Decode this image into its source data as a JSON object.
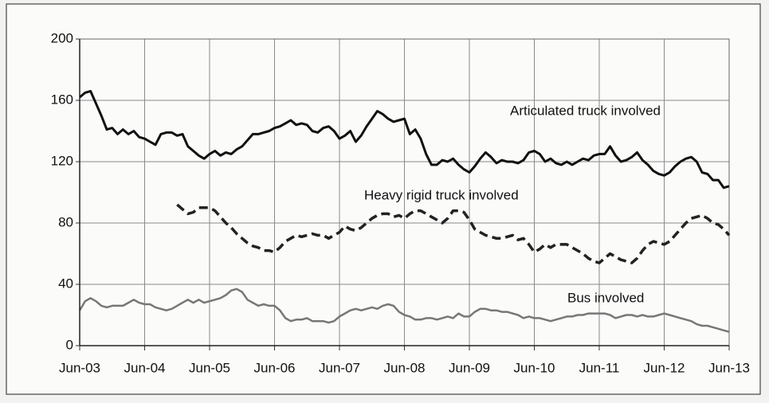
{
  "chart_data": {
    "type": "line",
    "categories": [
      "Jun-03",
      null,
      null,
      null,
      null,
      null,
      null,
      null,
      null,
      null,
      null,
      null,
      "Jun-04",
      null,
      null,
      null,
      null,
      null,
      null,
      null,
      null,
      null,
      null,
      null,
      "Jun-05",
      null,
      null,
      null,
      null,
      null,
      null,
      null,
      null,
      null,
      null,
      null,
      "Jun-06",
      null,
      null,
      null,
      null,
      null,
      null,
      null,
      null,
      null,
      null,
      null,
      "Jun-07",
      null,
      null,
      null,
      null,
      null,
      null,
      null,
      null,
      null,
      null,
      null,
      "Jun-08",
      null,
      null,
      null,
      null,
      null,
      null,
      null,
      null,
      null,
      null,
      null,
      "Jun-09",
      null,
      null,
      null,
      null,
      null,
      null,
      null,
      null,
      null,
      null,
      null,
      "Jun-10",
      null,
      null,
      null,
      null,
      null,
      null,
      null,
      null,
      null,
      null,
      null,
      "Jun-11",
      null,
      null,
      null,
      null,
      null,
      null,
      null,
      null,
      null,
      null,
      null,
      "Jun-12",
      null,
      null,
      null,
      null,
      null,
      null,
      null,
      null,
      null,
      null,
      null,
      "Jun-13"
    ],
    "series": [
      {
        "name": "Articulated truck involved",
        "color": "#111111",
        "dashed": false,
        "values": [
          162,
          165,
          166,
          158,
          150,
          141,
          142,
          138,
          141,
          138,
          140,
          136,
          135,
          133,
          131,
          138,
          139,
          139,
          137,
          138,
          130,
          127,
          124,
          122,
          125,
          127,
          124,
          126,
          125,
          128,
          130,
          134,
          138,
          138,
          139,
          140,
          142,
          143,
          145,
          147,
          144,
          145,
          144,
          140,
          139,
          142,
          143,
          140,
          135,
          137,
          140,
          133,
          137,
          143,
          148,
          153,
          151,
          148,
          146,
          147,
          148,
          138,
          141,
          135,
          125,
          118,
          118,
          121,
          120,
          122,
          118,
          115,
          113,
          117,
          122,
          126,
          123,
          119,
          121,
          120,
          120,
          119,
          121,
          126,
          127,
          125,
          120,
          122,
          119,
          118,
          120,
          118,
          120,
          122,
          121,
          124,
          125,
          125,
          130,
          124,
          120,
          121,
          123,
          126,
          121,
          118,
          114,
          112,
          111,
          113,
          117,
          120,
          122,
          123,
          120,
          113,
          112,
          108,
          108,
          103,
          104
        ]
      },
      {
        "name": "Heavy rigid truck involved",
        "color": "#222222",
        "dashed": true,
        "values": [
          null,
          null,
          null,
          null,
          null,
          null,
          null,
          null,
          null,
          null,
          null,
          null,
          null,
          null,
          null,
          null,
          null,
          null,
          92,
          89,
          86,
          87,
          90,
          90,
          90,
          88,
          84,
          80,
          77,
          73,
          70,
          67,
          65,
          64,
          62,
          62,
          61,
          64,
          68,
          70,
          72,
          71,
          72,
          73,
          72,
          72,
          70,
          72,
          74,
          78,
          76,
          75,
          77,
          80,
          83,
          85,
          86,
          86,
          84,
          85,
          83,
          86,
          88,
          88,
          86,
          84,
          82,
          80,
          83,
          88,
          88,
          87,
          82,
          76,
          74,
          72,
          71,
          70,
          70,
          71,
          72,
          69,
          70,
          66,
          61,
          63,
          66,
          64,
          66,
          66,
          66,
          64,
          62,
          60,
          57,
          55,
          54,
          57,
          60,
          58,
          56,
          55,
          54,
          57,
          62,
          66,
          68,
          67,
          66,
          68,
          72,
          76,
          80,
          83,
          84,
          85,
          83,
          80,
          79,
          76,
          72
        ]
      },
      {
        "name": "Bus involved",
        "color": "#777777",
        "dashed": false,
        "values": [
          23,
          29,
          31,
          29,
          26,
          25,
          26,
          26,
          26,
          28,
          30,
          28,
          27,
          27,
          25,
          24,
          23,
          24,
          26,
          28,
          30,
          28,
          30,
          28,
          29,
          30,
          31,
          33,
          36,
          37,
          35,
          30,
          28,
          26,
          27,
          26,
          26,
          23,
          18,
          16,
          17,
          17,
          18,
          16,
          16,
          16,
          15,
          16,
          19,
          21,
          23,
          24,
          23,
          24,
          25,
          24,
          26,
          27,
          26,
          22,
          20,
          19,
          17,
          17,
          18,
          18,
          17,
          18,
          19,
          18,
          21,
          19,
          19,
          22,
          24,
          24,
          23,
          23,
          22,
          22,
          21,
          20,
          18,
          19,
          18,
          18,
          17,
          16,
          17,
          18,
          19,
          19,
          20,
          20,
          21,
          21,
          21,
          21,
          20,
          18,
          19,
          20,
          20,
          19,
          20,
          19,
          19,
          20,
          21,
          20,
          19,
          18,
          17,
          16,
          14,
          13,
          13,
          12,
          11,
          10,
          9
        ]
      }
    ],
    "ylim": [
      0,
      200
    ],
    "yticks": [
      0,
      40,
      80,
      120,
      160,
      200
    ],
    "grid": true
  }
}
